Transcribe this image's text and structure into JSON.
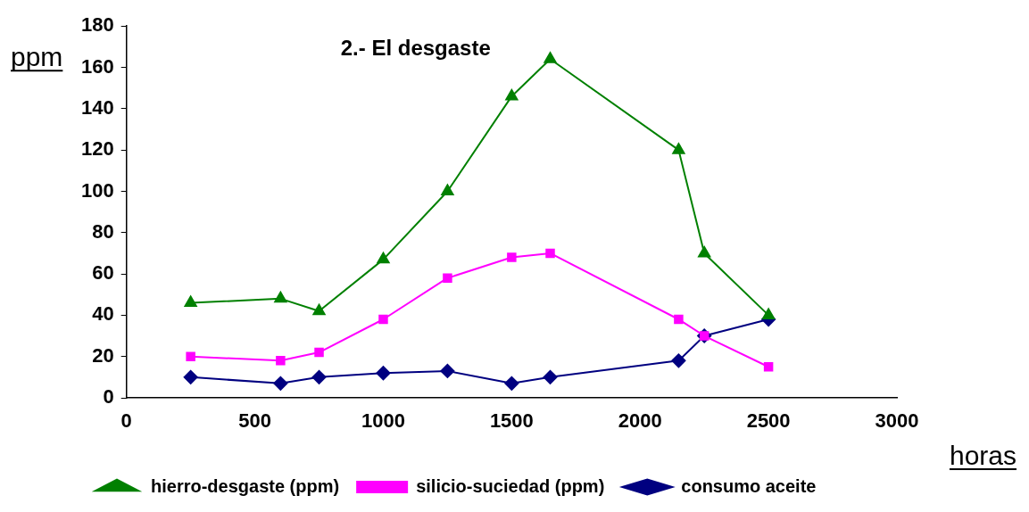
{
  "chart_data": {
    "type": "line",
    "title": "2.- El desgaste",
    "xlabel": "horas",
    "ylabel": "ppm",
    "x": [
      250,
      600,
      750,
      1000,
      1250,
      1500,
      1650,
      2150,
      2250,
      2500
    ],
    "xlim": [
      0,
      3000
    ],
    "xticks": [
      0,
      500,
      1000,
      1500,
      2000,
      2500,
      3000
    ],
    "ylim": [
      0,
      180
    ],
    "yticks": [
      0,
      20,
      40,
      60,
      80,
      100,
      120,
      140,
      160,
      180
    ],
    "grid": false,
    "legend": "bottom",
    "series": [
      {
        "name": "consumo aceite",
        "color": "#000080",
        "marker": "diamond",
        "values": [
          10,
          7,
          10,
          12,
          13,
          7,
          10,
          18,
          30,
          38
        ]
      },
      {
        "name": "silicio-suciedad (ppm)",
        "color": "#ff00ff",
        "marker": "square",
        "values": [
          20,
          18,
          22,
          38,
          58,
          68,
          70,
          38,
          30,
          15
        ]
      },
      {
        "name": "hierro-desgaste (ppm)",
        "color": "#008000",
        "marker": "triangle",
        "values": [
          46,
          48,
          42,
          67,
          100,
          146,
          164,
          120,
          70,
          40
        ]
      }
    ]
  }
}
